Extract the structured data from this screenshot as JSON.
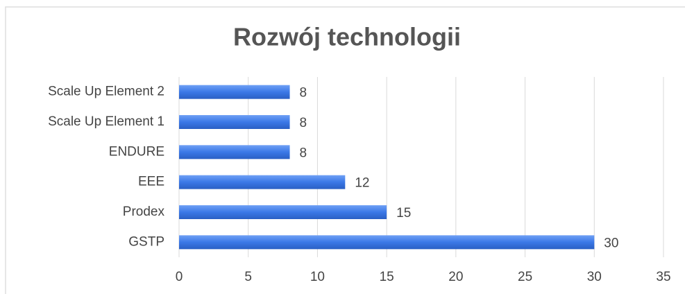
{
  "chart_data": {
    "type": "bar",
    "orientation": "horizontal",
    "title": "Rozwój technologii",
    "categories": [
      "Scale Up Element 2",
      "Scale Up Element 1",
      "ENDURE",
      "EEE",
      "Prodex",
      "GSTP"
    ],
    "values": [
      8,
      8,
      8,
      12,
      15,
      30
    ],
    "color": "#3b78e7",
    "xlim": [
      0,
      35
    ],
    "xticks": [
      0,
      5,
      10,
      15,
      20,
      25,
      30,
      35
    ],
    "grid": true
  }
}
